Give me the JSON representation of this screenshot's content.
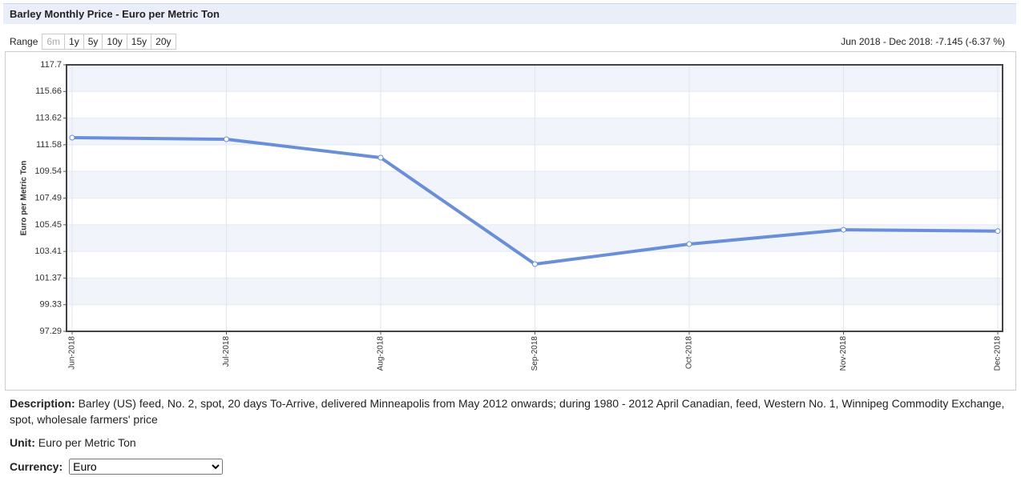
{
  "header": {
    "title": "Barley Monthly Price - Euro per Metric Ton"
  },
  "range": {
    "label": "Range",
    "options": [
      "6m",
      "1y",
      "5y",
      "10y",
      "15y",
      "20y"
    ],
    "change": "Jun 2018 - Dec 2018: -7.145 (-6.37 %)"
  },
  "chart_data": {
    "type": "line",
    "y_label": "Euro per Metric Ton",
    "categories": [
      "Jun-2018",
      "Jul-2018",
      "Aug-2018",
      "Sep-2018",
      "Oct-2018",
      "Nov-2018",
      "Dec-2018"
    ],
    "series": [
      {
        "name": "Barley",
        "color": "#6a8fd8",
        "values": [
          112.12,
          112.0,
          110.59,
          102.44,
          103.97,
          105.07,
          104.97
        ]
      }
    ],
    "ylim": [
      97.29,
      117.7
    ],
    "yticks": [
      97.29,
      99.33,
      101.37,
      103.41,
      105.45,
      107.49,
      109.54,
      111.58,
      113.62,
      115.66,
      117.7
    ],
    "grid": true,
    "legend": false
  },
  "description": {
    "label": "Description:",
    "text": "Barley (US) feed, No. 2, spot, 20 days To-Arrive, delivered Minneapolis from May 2012 onwards; during 1980 - 2012 April Canadian, feed, Western No. 1, Winnipeg Commodity Exchange, spot, wholesale farmers' price"
  },
  "unit": {
    "label": "Unit:",
    "text": "Euro per Metric Ton"
  },
  "currency": {
    "label": "Currency:",
    "selected": "Euro"
  }
}
